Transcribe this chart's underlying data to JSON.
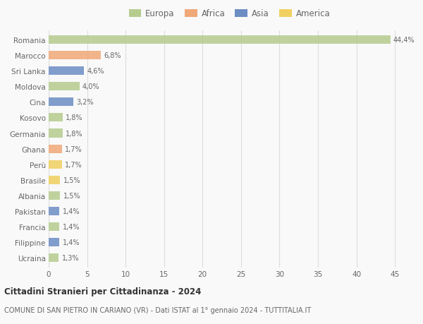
{
  "countries": [
    "Romania",
    "Marocco",
    "Sri Lanka",
    "Moldova",
    "Cina",
    "Kosovo",
    "Germania",
    "Ghana",
    "Perù",
    "Brasile",
    "Albania",
    "Pakistan",
    "Francia",
    "Filippine",
    "Ucraina"
  ],
  "values": [
    44.4,
    6.8,
    4.6,
    4.0,
    3.2,
    1.8,
    1.8,
    1.7,
    1.7,
    1.5,
    1.5,
    1.4,
    1.4,
    1.4,
    1.3
  ],
  "labels": [
    "44,4%",
    "6,8%",
    "4,6%",
    "4,0%",
    "3,2%",
    "1,8%",
    "1,8%",
    "1,7%",
    "1,7%",
    "1,5%",
    "1,5%",
    "1,4%",
    "1,4%",
    "1,4%",
    "1,3%"
  ],
  "continents": [
    "Europa",
    "Africa",
    "Asia",
    "Europa",
    "Asia",
    "Europa",
    "Europa",
    "Africa",
    "America",
    "America",
    "Europa",
    "Asia",
    "Europa",
    "Asia",
    "Europa"
  ],
  "continent_colors": {
    "Europa": "#b5cc8e",
    "Africa": "#f0a878",
    "Asia": "#6b8dc4",
    "America": "#f0d060"
  },
  "legend_order": [
    "Europa",
    "Africa",
    "Asia",
    "America"
  ],
  "title": "Cittadini Stranieri per Cittadinanza - 2024",
  "subtitle": "COMUNE DI SAN PIETRO IN CARIANO (VR) - Dati ISTAT al 1° gennaio 2024 - TUTTITALIA.IT",
  "xlim": [
    0,
    47
  ],
  "xticks": [
    0,
    5,
    10,
    15,
    20,
    25,
    30,
    35,
    40,
    45
  ],
  "bg_color": "#f9f9f9",
  "grid_color": "#dddddd",
  "bar_height": 0.55
}
